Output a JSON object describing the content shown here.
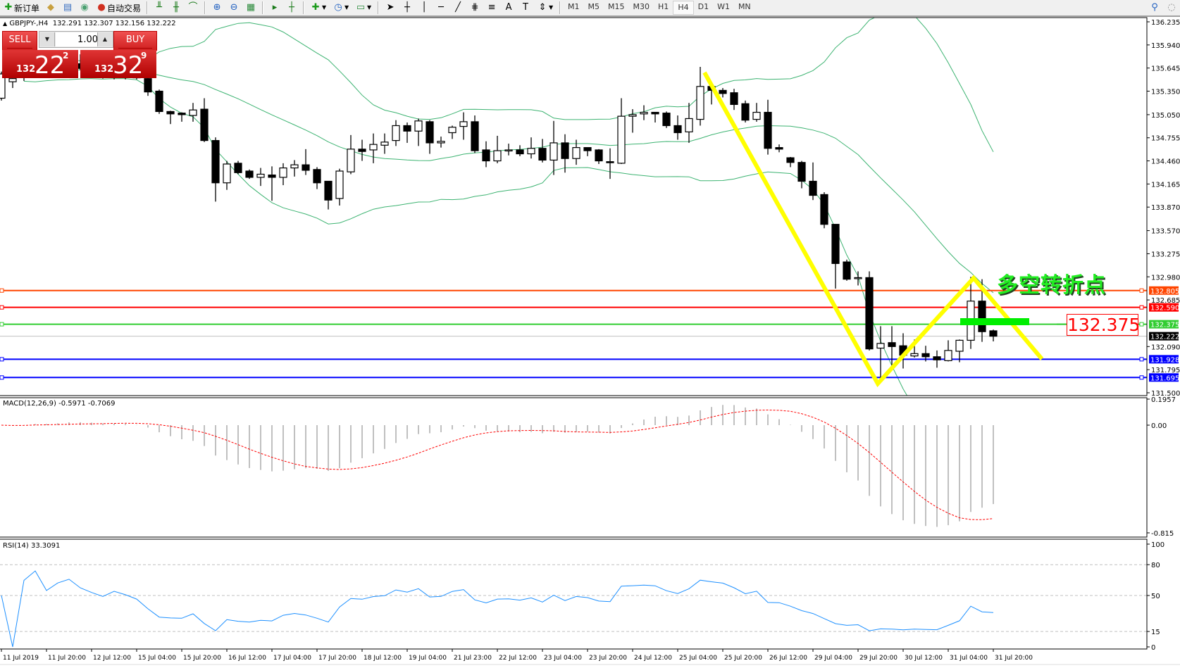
{
  "toolbar": {
    "new_order": "新订单",
    "auto_trading": "自动交易",
    "timeframes": [
      "M1",
      "M5",
      "M15",
      "M30",
      "H1",
      "H4",
      "D1",
      "W1",
      "MN"
    ],
    "active_timeframe": "H4"
  },
  "chart": {
    "symbol": "GBPJPY-,H4",
    "ohlc_header": "132.291 132.307 132.156 132.222"
  },
  "trade_panel": {
    "sell_label": "SELL",
    "buy_label": "BUY",
    "lot": "1.00",
    "sell_price": {
      "big": "132",
      "main": "22",
      "pip": "2"
    },
    "buy_price": {
      "big": "132",
      "main": "32",
      "pip": "9"
    }
  },
  "price_axis": {
    "ticks": [
      "136.235",
      "135.940",
      "135.645",
      "135.350",
      "135.050",
      "134.755",
      "134.460",
      "134.165",
      "133.870",
      "133.570",
      "133.275",
      "132.980",
      "132.685",
      "132.090",
      "131.795",
      "131.500"
    ]
  },
  "levels": [
    {
      "price": "132.805",
      "color": "#ff4500"
    },
    {
      "price": "132.590",
      "color": "#ff0000"
    },
    {
      "price": "132.375",
      "color": "#32cd32"
    },
    {
      "price": "131.928",
      "color": "#0000ff"
    },
    {
      "price": "131.695",
      "color": "#0000ff"
    }
  ],
  "current_price": {
    "price": "132.222",
    "color": "#000000"
  },
  "annotation": {
    "text": "多空转折点",
    "price_box": "132.375",
    "zigzag_color": "#ffff00",
    "marker_color": "#00ee00"
  },
  "macd": {
    "label": "MACD(12,26,9) -0.5971 -0.7069",
    "ticks": [
      "0.1957",
      "0.00",
      "-0.815"
    ]
  },
  "rsi": {
    "label": "RSI(14) 33.3091",
    "ticks": [
      "100",
      "80",
      "50",
      "15",
      "0"
    ]
  },
  "time_axis": {
    "labels": [
      "11 Jul 2019",
      "11 Jul 20:00",
      "12 Jul 12:00",
      "15 Jul 04:00",
      "15 Jul 20:00",
      "16 Jul 12:00",
      "17 Jul 04:00",
      "17 Jul 20:00",
      "18 Jul 12:00",
      "19 Jul 04:00",
      "21 Jul 23:00",
      "22 Jul 12:00",
      "23 Jul 04:00",
      "23 Jul 20:00",
      "24 Jul 12:00",
      "25 Jul 04:00",
      "25 Jul 20:00",
      "26 Jul 12:00",
      "29 Jul 04:00",
      "29 Jul 20:00",
      "30 Jul 12:00",
      "31 Jul 04:00",
      "31 Jul 20:00"
    ]
  },
  "chart_data": {
    "type": "candlestick",
    "ylim": [
      131.5,
      136.235
    ],
    "colors": {
      "bull": "#ffffff",
      "bear": "#000000",
      "bollinger": "#3cb371",
      "macd_hist": "#c0c0c0",
      "macd_signal": "#ff0000",
      "rsi": "#1e90ff"
    },
    "ohlc": [
      [
        135.26,
        135.6,
        135.23,
        135.57
      ],
      [
        135.47,
        135.52,
        135.39,
        135.51
      ],
      [
        135.55,
        135.7,
        135.48,
        135.62
      ],
      [
        135.62,
        135.75,
        135.55,
        135.68
      ],
      [
        135.68,
        135.8,
        135.58,
        135.6
      ],
      [
        135.6,
        135.72,
        135.52,
        135.66
      ],
      [
        135.66,
        135.78,
        135.6,
        135.7
      ],
      [
        135.7,
        135.82,
        135.62,
        135.64
      ],
      [
        135.64,
        135.74,
        135.55,
        135.6
      ],
      [
        135.6,
        135.7,
        135.51,
        135.56
      ],
      [
        135.56,
        135.68,
        135.5,
        135.62
      ],
      [
        135.62,
        135.72,
        135.5,
        135.58
      ],
      [
        135.58,
        135.66,
        135.5,
        135.52
      ],
      [
        135.51,
        135.55,
        135.29,
        135.34
      ],
      [
        135.35,
        135.37,
        135.06,
        135.09
      ],
      [
        135.09,
        135.1,
        134.93,
        135.06
      ],
      [
        135.07,
        135.08,
        134.96,
        135.05
      ],
      [
        135.04,
        135.2,
        134.96,
        135.11
      ],
      [
        135.12,
        135.26,
        134.7,
        134.72
      ],
      [
        134.72,
        134.76,
        133.94,
        134.18
      ],
      [
        134.18,
        134.46,
        134.09,
        134.42
      ],
      [
        134.43,
        134.46,
        134.29,
        134.31
      ],
      [
        134.33,
        134.35,
        134.23,
        134.25
      ],
      [
        134.25,
        134.37,
        134.14,
        134.29
      ],
      [
        134.28,
        134.39,
        133.95,
        134.25
      ],
      [
        134.25,
        134.43,
        134.15,
        134.37
      ],
      [
        134.37,
        134.47,
        134.26,
        134.41
      ],
      [
        134.41,
        134.61,
        134.28,
        134.34
      ],
      [
        134.35,
        134.38,
        134.1,
        134.18
      ],
      [
        134.2,
        134.2,
        133.84,
        133.96
      ],
      [
        133.98,
        134.36,
        133.89,
        134.33
      ],
      [
        134.32,
        134.79,
        134.29,
        134.61
      ],
      [
        134.61,
        134.73,
        134.46,
        134.58
      ],
      [
        134.6,
        134.81,
        134.43,
        134.67
      ],
      [
        134.66,
        134.81,
        134.55,
        134.7
      ],
      [
        134.72,
        134.98,
        134.65,
        134.91
      ],
      [
        134.91,
        134.95,
        134.69,
        134.84
      ],
      [
        134.84,
        135.0,
        134.65,
        134.97
      ],
      [
        134.96,
        134.98,
        134.55,
        134.69
      ],
      [
        134.69,
        134.77,
        134.63,
        134.71
      ],
      [
        134.82,
        134.91,
        134.74,
        134.89
      ],
      [
        134.9,
        135.08,
        134.73,
        134.96
      ],
      [
        134.96,
        135.04,
        134.56,
        134.59
      ],
      [
        134.6,
        134.71,
        134.38,
        134.46
      ],
      [
        134.46,
        134.78,
        134.43,
        134.59
      ],
      [
        134.6,
        134.68,
        134.53,
        134.6
      ],
      [
        134.6,
        134.66,
        134.52,
        134.55
      ],
      [
        134.55,
        134.76,
        134.49,
        134.62
      ],
      [
        134.62,
        134.74,
        134.44,
        134.47
      ],
      [
        134.47,
        134.97,
        134.28,
        134.69
      ],
      [
        134.69,
        134.8,
        134.31,
        134.49
      ],
      [
        134.49,
        134.73,
        134.41,
        134.63
      ],
      [
        134.63,
        134.63,
        134.52,
        134.59
      ],
      [
        134.6,
        134.61,
        134.42,
        134.46
      ],
      [
        134.45,
        134.62,
        134.23,
        134.44
      ],
      [
        134.43,
        135.26,
        134.42,
        135.03
      ],
      [
        135.03,
        135.12,
        134.82,
        135.05
      ],
      [
        135.06,
        135.17,
        134.98,
        135.08
      ],
      [
        135.08,
        135.08,
        134.95,
        135.06
      ],
      [
        135.07,
        135.09,
        134.88,
        134.91
      ],
      [
        134.91,
        135.04,
        134.73,
        134.82
      ],
      [
        134.83,
        135.2,
        134.69,
        135.0
      ],
      [
        134.99,
        135.66,
        134.91,
        135.41
      ],
      [
        135.41,
        135.41,
        135.18,
        135.36
      ],
      [
        135.36,
        135.39,
        135.27,
        135.32
      ],
      [
        135.33,
        135.38,
        135.11,
        135.18
      ],
      [
        135.19,
        135.23,
        134.95,
        134.98
      ],
      [
        134.99,
        135.2,
        134.96,
        135.08
      ],
      [
        135.08,
        135.24,
        134.54,
        134.62
      ],
      [
        134.63,
        134.67,
        134.57,
        134.61
      ],
      [
        134.5,
        134.51,
        134.38,
        134.44
      ],
      [
        134.44,
        134.46,
        134.11,
        134.2
      ],
      [
        134.2,
        134.44,
        133.96,
        134.02
      ],
      [
        134.03,
        134.06,
        133.6,
        133.65
      ],
      [
        133.65,
        133.65,
        132.83,
        133.15
      ],
      [
        133.17,
        133.2,
        132.93,
        132.95
      ],
      [
        132.96,
        133.05,
        132.87,
        132.97
      ],
      [
        132.97,
        133.05,
        132.04,
        132.06
      ],
      [
        132.07,
        132.35,
        131.66,
        132.13
      ],
      [
        132.14,
        132.35,
        131.81,
        132.09
      ],
      [
        132.1,
        132.26,
        131.81,
        131.98
      ],
      [
        131.97,
        132.18,
        131.95,
        132.0
      ],
      [
        132.0,
        132.1,
        131.9,
        131.96
      ],
      [
        131.96,
        132.04,
        131.82,
        131.92
      ],
      [
        131.91,
        132.17,
        131.9,
        132.04
      ],
      [
        132.03,
        132.18,
        131.89,
        132.17
      ],
      [
        132.17,
        132.98,
        132.06,
        132.67
      ],
      [
        132.67,
        132.95,
        132.15,
        132.28
      ],
      [
        132.291,
        132.307,
        132.156,
        132.222
      ]
    ]
  }
}
